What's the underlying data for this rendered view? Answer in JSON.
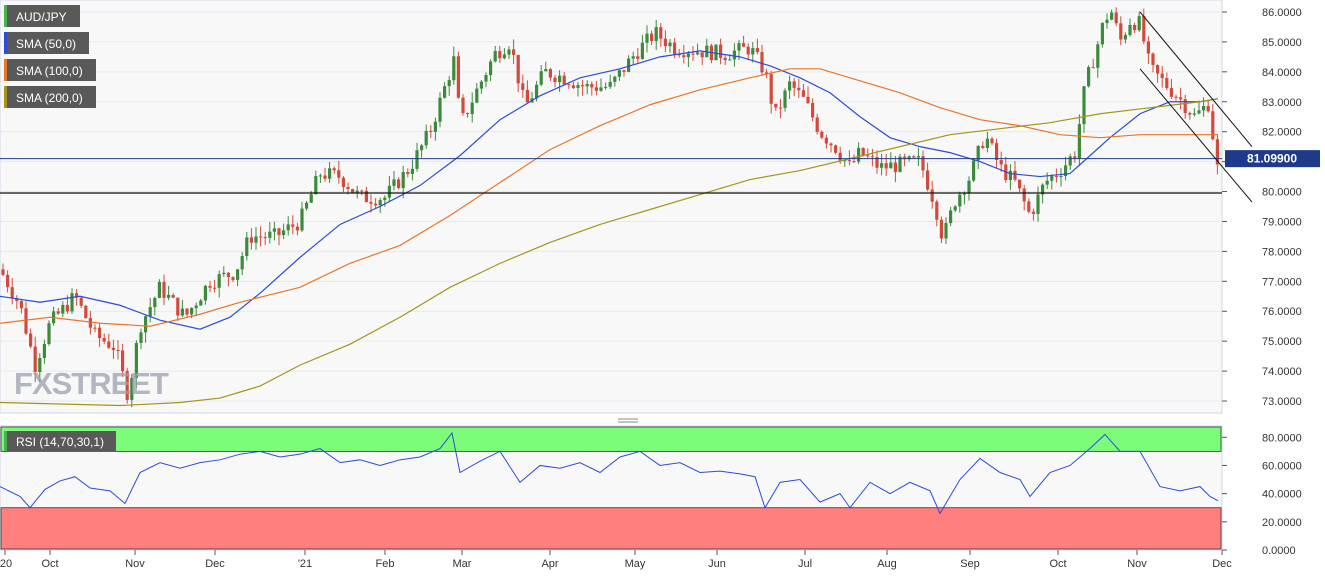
{
  "chart_data": [
    {
      "type": "candlestick",
      "symbol": "AUD/JPY",
      "ylim": [
        72.6,
        86.4
      ],
      "yticks": [
        "86.0000",
        "85.0000",
        "84.0000",
        "83.0000",
        "82.0000",
        "81.0000",
        "80.0000",
        "79.0000",
        "78.0000",
        "77.0000",
        "76.0000",
        "75.0000",
        "74.0000",
        "73.0000"
      ],
      "last_price_label": "81.09900",
      "last_price": 81.099,
      "support_level": 79.95,
      "xticks": [
        "2020",
        "Oct",
        "Nov",
        "Dec",
        "2021",
        "Feb",
        "Mar",
        "Apr",
        "May",
        "Jun",
        "Jul",
        "Aug",
        "Sep",
        "Oct",
        "Nov",
        "Dec"
      ],
      "series": [
        {
          "name": "SMA (50,0)",
          "color": "#2b4cd8",
          "points": [
            [
              0,
              76.5
            ],
            [
              40,
              76.3
            ],
            [
              80,
              76.5
            ],
            [
              120,
              76.2
            ],
            [
              160,
              75.7
            ],
            [
              200,
              75.4
            ],
            [
              230,
              75.8
            ],
            [
              260,
              76.6
            ],
            [
              300,
              77.8
            ],
            [
              340,
              78.9
            ],
            [
              380,
              79.5
            ],
            [
              420,
              80.2
            ],
            [
              460,
              81.2
            ],
            [
              500,
              82.4
            ],
            [
              540,
              83.2
            ],
            [
              580,
              83.8
            ],
            [
              620,
              84.1
            ],
            [
              660,
              84.5
            ],
            [
              700,
              84.7
            ],
            [
              740,
              84.5
            ],
            [
              770,
              84.2
            ],
            [
              800,
              83.8
            ],
            [
              830,
              83.3
            ],
            [
              860,
              82.5
            ],
            [
              890,
              81.8
            ],
            [
              920,
              81.5
            ],
            [
              950,
              81.3
            ],
            [
              980,
              81.0
            ],
            [
              1010,
              80.6
            ],
            [
              1040,
              80.5
            ],
            [
              1070,
              80.6
            ],
            [
              1090,
              81.2
            ],
            [
              1110,
              81.8
            ],
            [
              1140,
              82.6
            ],
            [
              1170,
              83.0
            ],
            [
              1200,
              83.0
            ],
            [
              1218,
              83.1
            ]
          ]
        },
        {
          "name": "SMA (100,0)",
          "color": "#e8762b",
          "points": [
            [
              0,
              75.6
            ],
            [
              50,
              75.8
            ],
            [
              100,
              75.6
            ],
            [
              150,
              75.5
            ],
            [
              200,
              75.9
            ],
            [
              240,
              76.3
            ],
            [
              300,
              76.8
            ],
            [
              350,
              77.6
            ],
            [
              400,
              78.2
            ],
            [
              450,
              79.2
            ],
            [
              500,
              80.3
            ],
            [
              550,
              81.4
            ],
            [
              600,
              82.2
            ],
            [
              650,
              82.9
            ],
            [
              700,
              83.4
            ],
            [
              750,
              83.8
            ],
            [
              790,
              84.1
            ],
            [
              820,
              84.1
            ],
            [
              860,
              83.7
            ],
            [
              900,
              83.3
            ],
            [
              940,
              82.8
            ],
            [
              980,
              82.4
            ],
            [
              1020,
              82.2
            ],
            [
              1060,
              81.9
            ],
            [
              1100,
              81.8
            ],
            [
              1140,
              81.9
            ],
            [
              1180,
              81.9
            ],
            [
              1218,
              81.9
            ]
          ]
        },
        {
          "name": "SMA (200,0)",
          "color": "#a4951c",
          "points": [
            [
              0,
              72.95
            ],
            [
              60,
              72.9
            ],
            [
              120,
              72.85
            ],
            [
              180,
              72.95
            ],
            [
              220,
              73.1
            ],
            [
              260,
              73.5
            ],
            [
              300,
              74.2
            ],
            [
              350,
              74.9
            ],
            [
              400,
              75.8
            ],
            [
              450,
              76.8
            ],
            [
              500,
              77.6
            ],
            [
              550,
              78.3
            ],
            [
              600,
              78.9
            ],
            [
              650,
              79.4
            ],
            [
              700,
              79.9
            ],
            [
              750,
              80.4
            ],
            [
              800,
              80.7
            ],
            [
              850,
              81.1
            ],
            [
              900,
              81.5
            ],
            [
              950,
              81.9
            ],
            [
              1000,
              82.1
            ],
            [
              1050,
              82.3
            ],
            [
              1100,
              82.6
            ],
            [
              1150,
              82.8
            ],
            [
              1200,
              83.0
            ],
            [
              1218,
              83.1
            ]
          ]
        }
      ],
      "channel_lines": [
        [
          [
            1140,
            86.0
          ],
          [
            1252,
            81.5
          ]
        ],
        [
          [
            1140,
            84.1
          ],
          [
            1252,
            79.65
          ]
        ]
      ]
    },
    {
      "type": "line",
      "name": "RSI (14,70,30,1)",
      "ylim": [
        0,
        88
      ],
      "yticks": [
        "80.0000",
        "60.0000",
        "40.0000",
        "20.0000",
        "0.0000"
      ],
      "overbought": 70,
      "oversold": 30,
      "points": [
        [
          0,
          45
        ],
        [
          20,
          38
        ],
        [
          30,
          30
        ],
        [
          45,
          43
        ],
        [
          60,
          49
        ],
        [
          75,
          52
        ],
        [
          90,
          44
        ],
        [
          110,
          42
        ],
        [
          125,
          33
        ],
        [
          140,
          55
        ],
        [
          160,
          62
        ],
        [
          180,
          58
        ],
        [
          200,
          62
        ],
        [
          220,
          64
        ],
        [
          240,
          68
        ],
        [
          260,
          70
        ],
        [
          280,
          66
        ],
        [
          300,
          68
        ],
        [
          320,
          72
        ],
        [
          340,
          62
        ],
        [
          360,
          64
        ],
        [
          380,
          60
        ],
        [
          400,
          64
        ],
        [
          420,
          66
        ],
        [
          440,
          72
        ],
        [
          452,
          83
        ],
        [
          460,
          55
        ],
        [
          480,
          63
        ],
        [
          500,
          70
        ],
        [
          520,
          48
        ],
        [
          540,
          60
        ],
        [
          560,
          58
        ],
        [
          580,
          62
        ],
        [
          600,
          55
        ],
        [
          620,
          66
        ],
        [
          640,
          70
        ],
        [
          660,
          60
        ],
        [
          680,
          62
        ],
        [
          700,
          55
        ],
        [
          720,
          56
        ],
        [
          740,
          54
        ],
        [
          755,
          52
        ],
        [
          765,
          30
        ],
        [
          780,
          48
        ],
        [
          800,
          50
        ],
        [
          820,
          34
        ],
        [
          840,
          40
        ],
        [
          850,
          30
        ],
        [
          870,
          48
        ],
        [
          890,
          40
        ],
        [
          910,
          48
        ],
        [
          930,
          42
        ],
        [
          940,
          26
        ],
        [
          960,
          50
        ],
        [
          980,
          65
        ],
        [
          1000,
          55
        ],
        [
          1020,
          50
        ],
        [
          1030,
          38
        ],
        [
          1050,
          55
        ],
        [
          1070,
          60
        ],
        [
          1090,
          72
        ],
        [
          1105,
          82
        ],
        [
          1120,
          70
        ],
        [
          1140,
          70
        ],
        [
          1160,
          45
        ],
        [
          1180,
          42
        ],
        [
          1200,
          45
        ],
        [
          1210,
          38
        ],
        [
          1218,
          35
        ]
      ]
    }
  ],
  "legend": {
    "aud_jpy": "AUD/JPY",
    "sma50": "SMA (50,0)",
    "sma100": "SMA (100,0)",
    "sma200": "SMA (200,0)",
    "rsi": "RSI (14,70,30,1)"
  },
  "watermark": "FXSTREET"
}
